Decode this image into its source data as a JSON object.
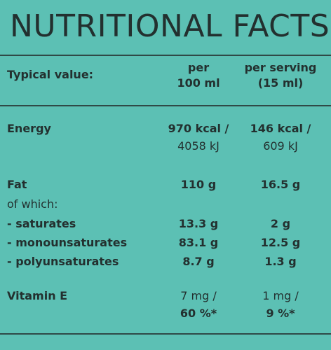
{
  "header": {
    "title": "NUTRITIONAL FACTS"
  },
  "table": {
    "columns": [
      "Typical value:",
      [
        "per",
        "100 ml"
      ],
      [
        "per serving",
        "(15 ml)"
      ]
    ],
    "subheading": "of which:",
    "rows": [
      {
        "label": "Energy",
        "per_100ml": [
          "970 kcal /",
          "4058 kJ"
        ],
        "per_serving": [
          "146 kcal /",
          "609 kJ"
        ]
      },
      {
        "label": "Fat",
        "per_100ml": [
          "110 g"
        ],
        "per_serving": [
          "16.5 g"
        ]
      },
      {
        "label": "- saturates",
        "per_100ml": [
          "13.3 g"
        ],
        "per_serving": [
          "2 g"
        ]
      },
      {
        "label": "- monounsaturates",
        "per_100ml": [
          "83.1 g"
        ],
        "per_serving": [
          "12.5 g"
        ]
      },
      {
        "label": "- polyunsaturates",
        "per_100ml": [
          "8.7 g"
        ],
        "per_serving": [
          "1.3 g"
        ]
      },
      {
        "label": "Vitamin E",
        "per_100ml": [
          "7 mg /",
          "60 %*"
        ],
        "per_serving": [
          "1 mg /",
          "9 %*"
        ]
      }
    ]
  }
}
